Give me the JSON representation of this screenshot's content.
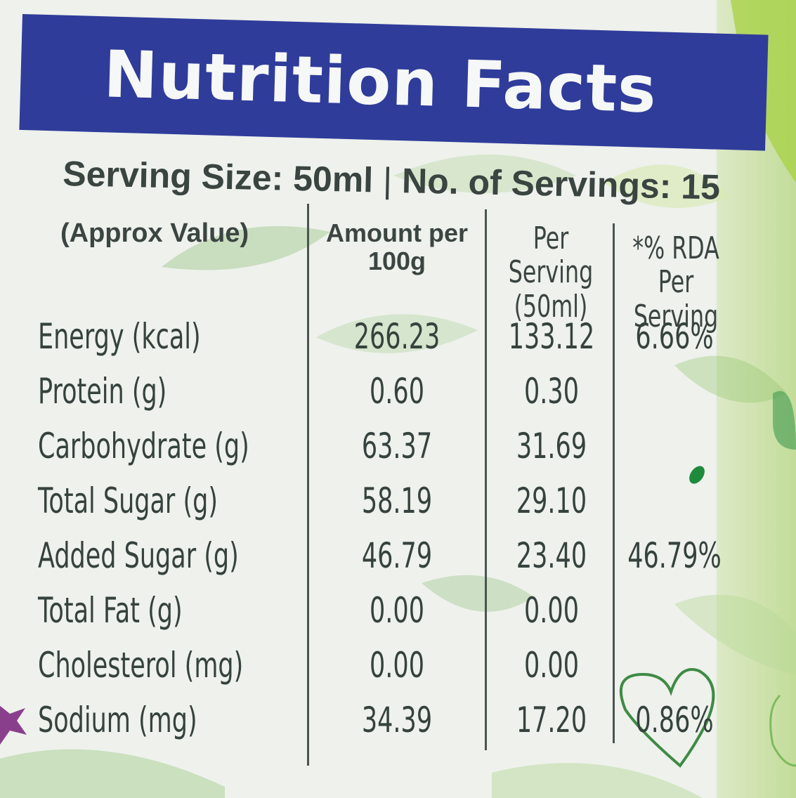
{
  "panel": {
    "title": "Nutrition Facts",
    "serving_size": "Serving Size: 50ml",
    "separator": "|",
    "servings": "No. of Servings: 15"
  },
  "table": {
    "headers": {
      "label": "(Approx Value)",
      "per100_line1": "Amount per",
      "per100_line2": "100g",
      "serving_line1": "Per Serving",
      "serving_line2": "(50ml)",
      "rda_line1": "*% RDA",
      "rda_line2": "Per Serving"
    },
    "rows": [
      {
        "name": "Energy (kcal)",
        "per100": "266.23",
        "serving": "133.12",
        "rda": "6.66%"
      },
      {
        "name": "Protein (g)",
        "per100": "0.60",
        "serving": "0.30",
        "rda": ""
      },
      {
        "name": "Carbohydrate (g)",
        "per100": "63.37",
        "serving": "31.69",
        "rda": ""
      },
      {
        "name": "Total Sugar (g)",
        "per100": "58.19",
        "serving": "29.10",
        "rda": ""
      },
      {
        "name": "Added Sugar (g)",
        "per100": "46.79",
        "serving": "23.40",
        "rda": "46.79%"
      },
      {
        "name": "Total Fat (g)",
        "per100": "0.00",
        "serving": "0.00",
        "rda": ""
      },
      {
        "name": "Cholesterol (mg)",
        "per100": "0.00",
        "serving": "0.00",
        "rda": ""
      },
      {
        "name": "Sodium (mg)",
        "per100": "34.39",
        "serving": "17.20",
        "rda": "0.86%"
      }
    ]
  },
  "colors": {
    "header_blue": "#2f3c9a",
    "leaf_green": "#8fc46a",
    "text": "#36423d"
  }
}
